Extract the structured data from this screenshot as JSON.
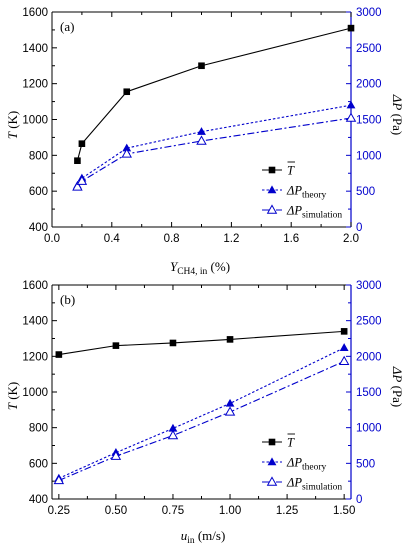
{
  "chart_data": [
    {
      "type": "line",
      "panel_label": "(a)",
      "xlabel": {
        "main": "Y",
        "sub": "CH4, in",
        "unit": " (%)"
      },
      "ylabel_left": {
        "main": "T",
        "unit": " (K)"
      },
      "ylabel_right": {
        "main": "ΔP",
        "unit": " (Pa)"
      },
      "xlim": [
        0.0,
        2.0
      ],
      "ylim_left": [
        400,
        1600
      ],
      "ylim_right": [
        0,
        3000
      ],
      "xticks": [
        "0.0",
        "0.4",
        "0.8",
        "1.2",
        "1.6",
        "2.0"
      ],
      "xtick_values": [
        0.0,
        0.4,
        0.8,
        1.2,
        1.6,
        2.0
      ],
      "yticks_left": [
        "400",
        "600",
        "800",
        "1000",
        "1200",
        "1400",
        "1600"
      ],
      "yticks_right": [
        "0",
        "500",
        "1000",
        "1500",
        "2000",
        "2500",
        "3000"
      ],
      "legend_position": "center-right",
      "series": [
        {
          "name": "T",
          "name_over": "bar",
          "axis": "left",
          "color": "#000000",
          "marker": "filled-square",
          "line": "solid",
          "x": [
            0.17,
            0.2,
            0.5,
            1.0,
            2.0
          ],
          "y": [
            770,
            865,
            1155,
            1300,
            1510
          ]
        },
        {
          "name": "ΔP",
          "name_sub": "theory",
          "axis": "right",
          "color": "#0000cc",
          "marker": "filled-triangle",
          "line": "dotted",
          "x": [
            0.17,
            0.2,
            0.5,
            1.0,
            2.0
          ],
          "y": [
            580,
            680,
            1100,
            1330,
            1700
          ]
        },
        {
          "name": "ΔP",
          "name_sub": "simulation",
          "axis": "right",
          "color": "#0000cc",
          "marker": "open-triangle",
          "line": "dashdot",
          "x": [
            0.17,
            0.2,
            0.5,
            1.0,
            2.0
          ],
          "y": [
            560,
            640,
            1020,
            1200,
            1520
          ]
        }
      ]
    },
    {
      "type": "line",
      "panel_label": "(b)",
      "xlabel": {
        "main": "u",
        "sub": "in",
        "unit": " (m/s)"
      },
      "ylabel_left": {
        "main": "T",
        "unit": " (K)"
      },
      "ylabel_right": {
        "main": "ΔP",
        "unit": " (Pa)"
      },
      "xlim": [
        0.22,
        1.53
      ],
      "ylim_left": [
        400,
        1600
      ],
      "ylim_right": [
        0,
        3000
      ],
      "xticks": [
        "0.25",
        "0.50",
        "0.75",
        "1.00",
        "1.25",
        "1.50"
      ],
      "xtick_values": [
        0.25,
        0.5,
        0.75,
        1.0,
        1.25,
        1.5
      ],
      "yticks_left": [
        "400",
        "600",
        "800",
        "1000",
        "1200",
        "1400",
        "1600"
      ],
      "yticks_right": [
        "0",
        "500",
        "1000",
        "1500",
        "2000",
        "2500",
        "3000"
      ],
      "legend_position": "bottom-right",
      "series": [
        {
          "name": "T",
          "name_over": "bar",
          "axis": "left",
          "color": "#000000",
          "marker": "filled-square",
          "line": "solid",
          "x": [
            0.25,
            0.5,
            0.75,
            1.0,
            1.5
          ],
          "y": [
            1210,
            1260,
            1275,
            1295,
            1340
          ]
        },
        {
          "name": "ΔP",
          "name_sub": "theory",
          "axis": "right",
          "color": "#0000cc",
          "marker": "filled-triangle",
          "line": "dotted",
          "x": [
            0.25,
            0.5,
            0.75,
            1.0,
            1.5
          ],
          "y": [
            290,
            650,
            990,
            1340,
            2120
          ]
        },
        {
          "name": "ΔP",
          "name_sub": "simulation",
          "axis": "right",
          "color": "#0000cc",
          "marker": "open-triangle",
          "line": "dashdot",
          "x": [
            0.25,
            0.5,
            0.75,
            1.0,
            1.5
          ],
          "y": [
            260,
            600,
            890,
            1220,
            1930
          ]
        }
      ]
    }
  ]
}
